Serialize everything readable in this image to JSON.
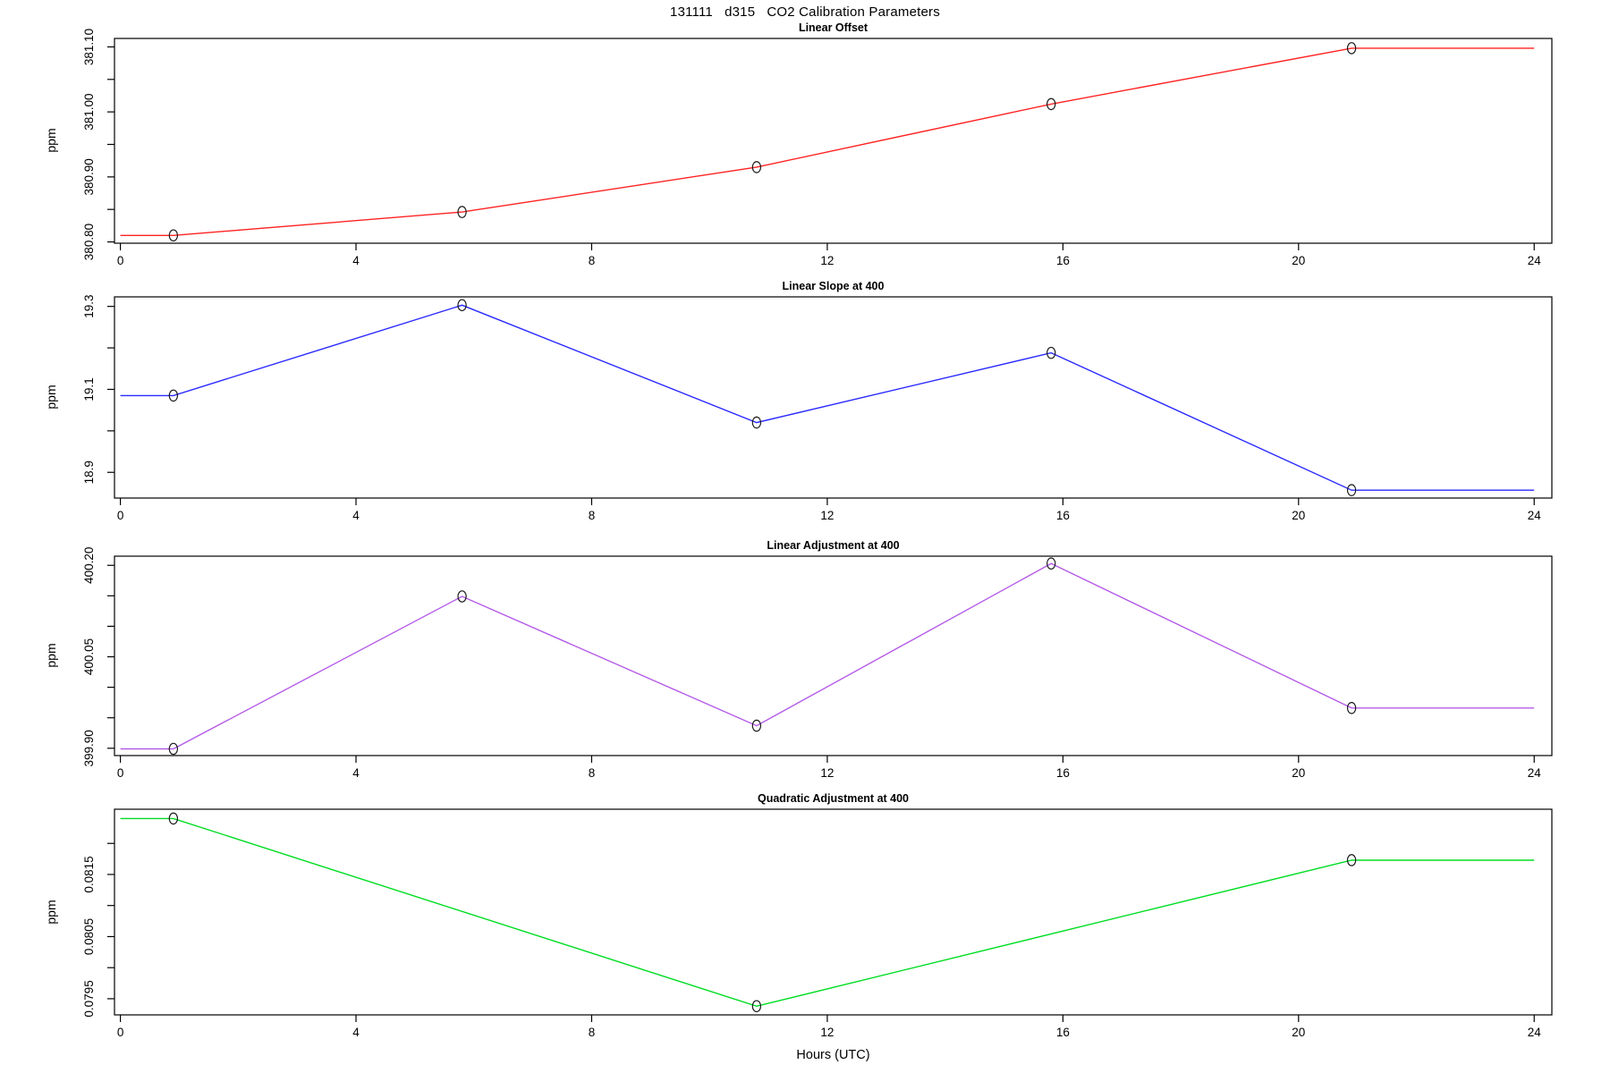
{
  "title": "131111   d315   CO2 Calibration Parameters",
  "xlabel": "Hours (UTC)",
  "x_axis": {
    "xlim": [
      -0.1,
      24.3
    ],
    "ticks": [
      0,
      4,
      8,
      12,
      16,
      20,
      24
    ],
    "labels": [
      "0",
      "4",
      "8",
      "12",
      "16",
      "20",
      "24"
    ]
  },
  "chart_data": [
    {
      "type": "line",
      "title": "Linear Offset",
      "ylabel": "ppm",
      "color": "#ff2222",
      "marker": "open-circle",
      "marker_color": "#1a1a1a",
      "grid": "off",
      "x": [
        0.9,
        5.8,
        10.8,
        15.8,
        20.9
      ],
      "y": [
        380.81,
        380.846,
        380.915,
        381.012,
        381.098
      ],
      "extend_flat_x": [
        0,
        24
      ],
      "ylim": [
        380.798,
        381.113
      ],
      "yticks": [
        {
          "v": 380.8,
          "label": "380.80"
        },
        {
          "v": 380.85
        },
        {
          "v": 380.9,
          "label": "380.90"
        },
        {
          "v": 380.95
        },
        {
          "v": 381.0,
          "label": "381.00"
        },
        {
          "v": 381.05
        },
        {
          "v": 381.1,
          "label": "381.10"
        }
      ]
    },
    {
      "type": "line",
      "title": "Linear Slope at 400",
      "ylabel": "ppm",
      "color": "#2a2aff",
      "marker": "open-circle",
      "marker_color": "#1a1a1a",
      "grid": "off",
      "x": [
        0.9,
        5.8,
        10.8,
        15.8,
        20.9
      ],
      "y": [
        19.085,
        19.303,
        19.02,
        19.188,
        18.857
      ],
      "extend_flat_x": [
        0,
        24
      ],
      "ylim": [
        18.838,
        19.323
      ],
      "yticks": [
        {
          "v": 18.9,
          "label": "18.9"
        },
        {
          "v": 19.0
        },
        {
          "v": 19.1,
          "label": "19.1"
        },
        {
          "v": 19.2
        },
        {
          "v": 19.3,
          "label": "19.3"
        }
      ]
    },
    {
      "type": "line",
      "title": "Linear Adjustment at 400",
      "ylabel": "ppm",
      "color": "#b55ce8",
      "marker": "open-circle",
      "marker_color": "#1a1a1a",
      "grid": "off",
      "x": [
        0.9,
        5.8,
        10.8,
        15.8,
        20.9
      ],
      "y": [
        399.899,
        400.149,
        399.937,
        400.203,
        399.966
      ],
      "extend_flat_x": [
        0,
        24
      ],
      "ylim": [
        399.888,
        400.215
      ],
      "yticks": [
        {
          "v": 399.9,
          "label": "399.90"
        },
        {
          "v": 399.95
        },
        {
          "v": 400.0
        },
        {
          "v": 400.05,
          "label": "400.05"
        },
        {
          "v": 400.1
        },
        {
          "v": 400.15
        },
        {
          "v": 400.2,
          "label": "400.20"
        }
      ]
    },
    {
      "type": "line",
      "title": "Quadratic Adjustment at 400",
      "ylabel": "ppm",
      "color": "#00dd22",
      "marker": "open-circle",
      "marker_color": "#1a1a1a",
      "grid": "off",
      "x": [
        0.9,
        10.8,
        20.9
      ],
      "y": [
        0.0824,
        0.07938,
        0.08173
      ],
      "extend_flat_x": [
        0,
        24
      ],
      "ylim": [
        0.07924,
        0.08255
      ],
      "yticks": [
        {
          "v": 0.0795,
          "label": "0.0795"
        },
        {
          "v": 0.08
        },
        {
          "v": 0.0805,
          "label": "0.0805"
        },
        {
          "v": 0.081
        },
        {
          "v": 0.0815,
          "label": "0.0815"
        },
        {
          "v": 0.082
        }
      ]
    }
  ]
}
